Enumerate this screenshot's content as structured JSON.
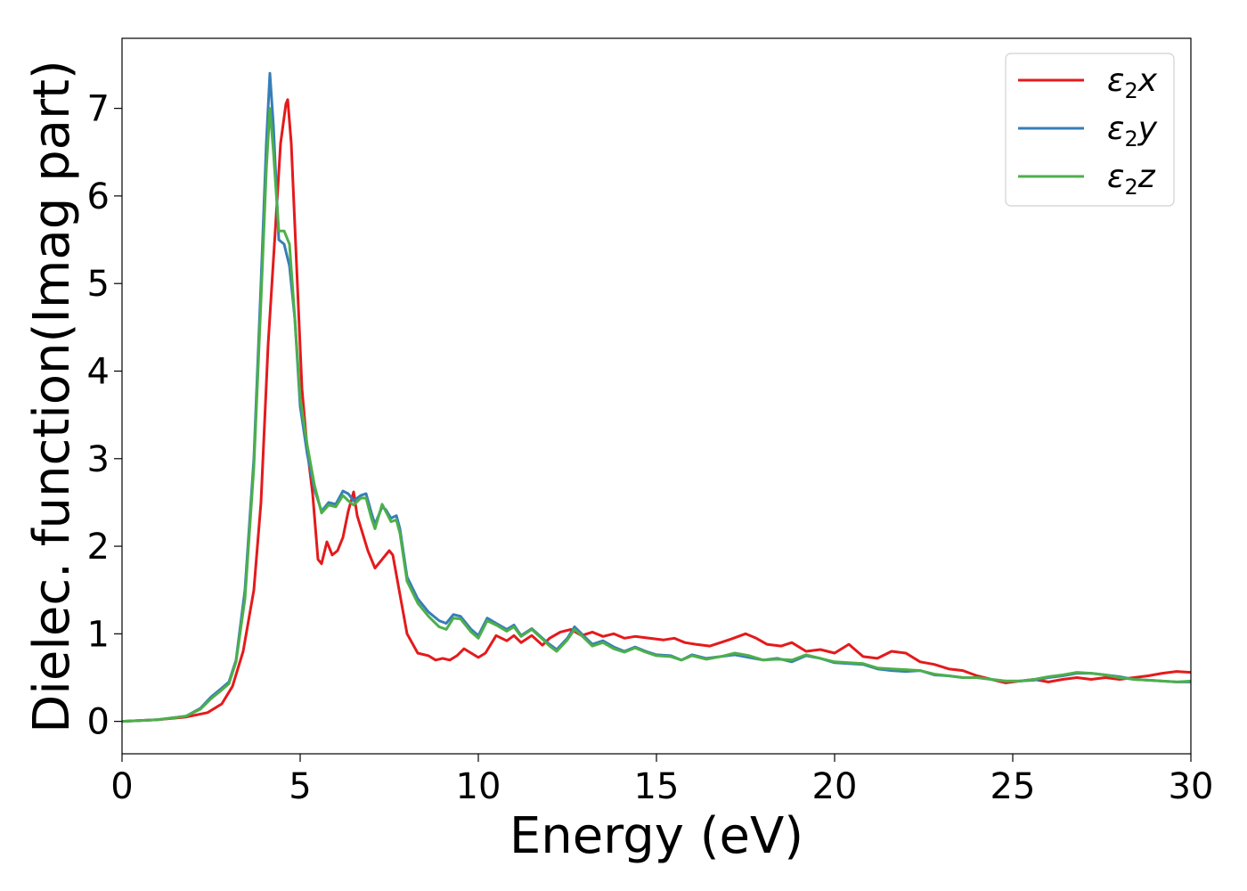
{
  "chart_data": {
    "type": "line",
    "title": "",
    "xlabel": "Energy (eV)",
    "ylabel": "Dielec. function(Imag part)",
    "xlim": [
      0,
      30
    ],
    "ylim": [
      -0.37,
      7.8
    ],
    "xticks": [
      0,
      5,
      10,
      15,
      20,
      25,
      30
    ],
    "yticks": [
      0,
      1,
      2,
      3,
      4,
      5,
      6,
      7
    ],
    "grid": false,
    "legend_position": "top-right",
    "series": [
      {
        "name": "ε₂x",
        "legend_base": "ε",
        "legend_sub": "2",
        "legend_suffix": "x",
        "color": "#e41a1c",
        "points": [
          [
            0,
            0
          ],
          [
            1,
            0.02
          ],
          [
            1.8,
            0.05
          ],
          [
            2.4,
            0.1
          ],
          [
            2.8,
            0.2
          ],
          [
            3.1,
            0.4
          ],
          [
            3.4,
            0.8
          ],
          [
            3.7,
            1.5
          ],
          [
            3.9,
            2.5
          ],
          [
            4.1,
            4.3
          ],
          [
            4.3,
            5.6
          ],
          [
            4.45,
            6.6
          ],
          [
            4.6,
            7.05
          ],
          [
            4.65,
            7.1
          ],
          [
            4.75,
            6.6
          ],
          [
            4.9,
            5.2
          ],
          [
            5.05,
            3.8
          ],
          [
            5.2,
            3.1
          ],
          [
            5.35,
            2.6
          ],
          [
            5.5,
            1.85
          ],
          [
            5.6,
            1.8
          ],
          [
            5.75,
            2.05
          ],
          [
            5.9,
            1.9
          ],
          [
            6.05,
            1.95
          ],
          [
            6.2,
            2.1
          ],
          [
            6.35,
            2.4
          ],
          [
            6.5,
            2.62
          ],
          [
            6.6,
            2.35
          ],
          [
            6.75,
            2.15
          ],
          [
            6.9,
            1.95
          ],
          [
            7.1,
            1.75
          ],
          [
            7.3,
            1.85
          ],
          [
            7.5,
            1.95
          ],
          [
            7.6,
            1.9
          ],
          [
            7.8,
            1.45
          ],
          [
            8.0,
            1.0
          ],
          [
            8.3,
            0.78
          ],
          [
            8.6,
            0.75
          ],
          [
            8.8,
            0.7
          ],
          [
            9.0,
            0.72
          ],
          [
            9.2,
            0.7
          ],
          [
            9.4,
            0.75
          ],
          [
            9.6,
            0.83
          ],
          [
            9.8,
            0.78
          ],
          [
            10.0,
            0.73
          ],
          [
            10.2,
            0.78
          ],
          [
            10.5,
            0.98
          ],
          [
            10.8,
            0.92
          ],
          [
            11.0,
            0.98
          ],
          [
            11.2,
            0.9
          ],
          [
            11.5,
            0.98
          ],
          [
            11.8,
            0.87
          ],
          [
            12.0,
            0.95
          ],
          [
            12.3,
            1.02
          ],
          [
            12.6,
            1.05
          ],
          [
            12.9,
            0.98
          ],
          [
            13.2,
            1.02
          ],
          [
            13.5,
            0.97
          ],
          [
            13.8,
            1.0
          ],
          [
            14.1,
            0.95
          ],
          [
            14.4,
            0.97
          ],
          [
            14.8,
            0.95
          ],
          [
            15.2,
            0.93
          ],
          [
            15.5,
            0.95
          ],
          [
            15.8,
            0.9
          ],
          [
            16.1,
            0.88
          ],
          [
            16.5,
            0.86
          ],
          [
            16.8,
            0.9
          ],
          [
            17.1,
            0.94
          ],
          [
            17.5,
            1.0
          ],
          [
            17.8,
            0.95
          ],
          [
            18.1,
            0.88
          ],
          [
            18.5,
            0.86
          ],
          [
            18.8,
            0.9
          ],
          [
            19.2,
            0.8
          ],
          [
            19.6,
            0.82
          ],
          [
            20.0,
            0.78
          ],
          [
            20.4,
            0.88
          ],
          [
            20.8,
            0.74
          ],
          [
            21.2,
            0.72
          ],
          [
            21.6,
            0.8
          ],
          [
            22.0,
            0.78
          ],
          [
            22.4,
            0.68
          ],
          [
            22.8,
            0.65
          ],
          [
            23.2,
            0.6
          ],
          [
            23.6,
            0.58
          ],
          [
            24.0,
            0.52
          ],
          [
            24.4,
            0.48
          ],
          [
            24.8,
            0.44
          ],
          [
            25.2,
            0.46
          ],
          [
            25.6,
            0.48
          ],
          [
            26.0,
            0.45
          ],
          [
            26.4,
            0.48
          ],
          [
            26.8,
            0.5
          ],
          [
            27.2,
            0.48
          ],
          [
            27.6,
            0.5
          ],
          [
            28.0,
            0.48
          ],
          [
            28.4,
            0.5
          ],
          [
            28.8,
            0.52
          ],
          [
            29.2,
            0.55
          ],
          [
            29.6,
            0.57
          ],
          [
            30.0,
            0.56
          ]
        ]
      },
      {
        "name": "ε₂y",
        "legend_base": "ε",
        "legend_sub": "2",
        "legend_suffix": "y",
        "color": "#377eb8",
        "points": [
          [
            0,
            0
          ],
          [
            1,
            0.02
          ],
          [
            1.8,
            0.06
          ],
          [
            2.2,
            0.15
          ],
          [
            2.5,
            0.28
          ],
          [
            2.8,
            0.38
          ],
          [
            3.0,
            0.45
          ],
          [
            3.2,
            0.7
          ],
          [
            3.45,
            1.5
          ],
          [
            3.7,
            3.0
          ],
          [
            3.9,
            5.0
          ],
          [
            4.05,
            6.6
          ],
          [
            4.15,
            7.4
          ],
          [
            4.25,
            6.8
          ],
          [
            4.4,
            5.5
          ],
          [
            4.55,
            5.45
          ],
          [
            4.7,
            5.2
          ],
          [
            4.85,
            4.6
          ],
          [
            5.0,
            3.6
          ],
          [
            5.2,
            3.05
          ],
          [
            5.4,
            2.65
          ],
          [
            5.6,
            2.4
          ],
          [
            5.8,
            2.5
          ],
          [
            6.0,
            2.48
          ],
          [
            6.2,
            2.63
          ],
          [
            6.35,
            2.6
          ],
          [
            6.5,
            2.52
          ],
          [
            6.7,
            2.58
          ],
          [
            6.85,
            2.6
          ],
          [
            7.0,
            2.38
          ],
          [
            7.1,
            2.25
          ],
          [
            7.3,
            2.45
          ],
          [
            7.4,
            2.42
          ],
          [
            7.55,
            2.32
          ],
          [
            7.7,
            2.35
          ],
          [
            7.8,
            2.2
          ],
          [
            8.0,
            1.65
          ],
          [
            8.3,
            1.4
          ],
          [
            8.6,
            1.25
          ],
          [
            8.9,
            1.15
          ],
          [
            9.1,
            1.12
          ],
          [
            9.3,
            1.22
          ],
          [
            9.5,
            1.2
          ],
          [
            9.8,
            1.05
          ],
          [
            10.0,
            0.98
          ],
          [
            10.25,
            1.18
          ],
          [
            10.5,
            1.12
          ],
          [
            10.8,
            1.05
          ],
          [
            11.0,
            1.1
          ],
          [
            11.2,
            0.98
          ],
          [
            11.5,
            1.06
          ],
          [
            11.8,
            0.95
          ],
          [
            12.0,
            0.88
          ],
          [
            12.2,
            0.82
          ],
          [
            12.5,
            0.95
          ],
          [
            12.7,
            1.08
          ],
          [
            12.9,
            1.0
          ],
          [
            13.2,
            0.88
          ],
          [
            13.5,
            0.92
          ],
          [
            13.8,
            0.85
          ],
          [
            14.1,
            0.8
          ],
          [
            14.4,
            0.85
          ],
          [
            14.7,
            0.8
          ],
          [
            15.0,
            0.76
          ],
          [
            15.4,
            0.75
          ],
          [
            15.7,
            0.7
          ],
          [
            16.0,
            0.76
          ],
          [
            16.4,
            0.72
          ],
          [
            16.8,
            0.74
          ],
          [
            17.2,
            0.76
          ],
          [
            17.6,
            0.73
          ],
          [
            18.0,
            0.7
          ],
          [
            18.4,
            0.72
          ],
          [
            18.8,
            0.68
          ],
          [
            19.2,
            0.75
          ],
          [
            19.6,
            0.72
          ],
          [
            20.0,
            0.67
          ],
          [
            20.4,
            0.66
          ],
          [
            20.8,
            0.65
          ],
          [
            21.2,
            0.6
          ],
          [
            21.6,
            0.58
          ],
          [
            22.0,
            0.57
          ],
          [
            22.4,
            0.58
          ],
          [
            22.8,
            0.53
          ],
          [
            23.2,
            0.52
          ],
          [
            23.6,
            0.5
          ],
          [
            24.0,
            0.5
          ],
          [
            24.4,
            0.48
          ],
          [
            24.8,
            0.46
          ],
          [
            25.2,
            0.46
          ],
          [
            25.6,
            0.47
          ],
          [
            26.0,
            0.5
          ],
          [
            26.4,
            0.52
          ],
          [
            26.8,
            0.55
          ],
          [
            27.2,
            0.55
          ],
          [
            27.6,
            0.53
          ],
          [
            28.0,
            0.51
          ],
          [
            28.4,
            0.48
          ],
          [
            28.8,
            0.47
          ],
          [
            29.2,
            0.46
          ],
          [
            29.6,
            0.45
          ],
          [
            30.0,
            0.45
          ]
        ]
      },
      {
        "name": "ε₂z",
        "legend_base": "ε",
        "legend_sub": "2",
        "legend_suffix": "z",
        "color": "#4daf4a",
        "points": [
          [
            0,
            0
          ],
          [
            1,
            0.02
          ],
          [
            1.8,
            0.06
          ],
          [
            2.2,
            0.14
          ],
          [
            2.5,
            0.26
          ],
          [
            2.8,
            0.36
          ],
          [
            3.0,
            0.43
          ],
          [
            3.2,
            0.68
          ],
          [
            3.45,
            1.4
          ],
          [
            3.7,
            2.9
          ],
          [
            3.9,
            4.8
          ],
          [
            4.05,
            6.3
          ],
          [
            4.15,
            7.0
          ],
          [
            4.25,
            6.5
          ],
          [
            4.4,
            5.6
          ],
          [
            4.55,
            5.6
          ],
          [
            4.7,
            5.45
          ],
          [
            4.85,
            4.6
          ],
          [
            5.0,
            3.7
          ],
          [
            5.2,
            3.15
          ],
          [
            5.4,
            2.7
          ],
          [
            5.6,
            2.38
          ],
          [
            5.8,
            2.47
          ],
          [
            6.0,
            2.45
          ],
          [
            6.2,
            2.58
          ],
          [
            6.35,
            2.52
          ],
          [
            6.5,
            2.47
          ],
          [
            6.7,
            2.55
          ],
          [
            6.85,
            2.55
          ],
          [
            7.0,
            2.32
          ],
          [
            7.1,
            2.2
          ],
          [
            7.3,
            2.48
          ],
          [
            7.4,
            2.4
          ],
          [
            7.55,
            2.28
          ],
          [
            7.7,
            2.3
          ],
          [
            7.8,
            2.15
          ],
          [
            8.0,
            1.6
          ],
          [
            8.3,
            1.35
          ],
          [
            8.6,
            1.2
          ],
          [
            8.9,
            1.08
          ],
          [
            9.1,
            1.05
          ],
          [
            9.3,
            1.18
          ],
          [
            9.5,
            1.17
          ],
          [
            9.8,
            1.02
          ],
          [
            10.0,
            0.95
          ],
          [
            10.25,
            1.15
          ],
          [
            10.5,
            1.1
          ],
          [
            10.8,
            1.03
          ],
          [
            11.0,
            1.08
          ],
          [
            11.2,
            0.97
          ],
          [
            11.5,
            1.05
          ],
          [
            11.8,
            0.94
          ],
          [
            12.0,
            0.86
          ],
          [
            12.2,
            0.8
          ],
          [
            12.5,
            0.93
          ],
          [
            12.7,
            1.05
          ],
          [
            12.9,
            0.98
          ],
          [
            13.2,
            0.86
          ],
          [
            13.5,
            0.9
          ],
          [
            13.8,
            0.83
          ],
          [
            14.1,
            0.79
          ],
          [
            14.4,
            0.84
          ],
          [
            14.7,
            0.79
          ],
          [
            15.0,
            0.75
          ],
          [
            15.4,
            0.74
          ],
          [
            15.7,
            0.7
          ],
          [
            16.0,
            0.75
          ],
          [
            16.4,
            0.71
          ],
          [
            16.8,
            0.74
          ],
          [
            17.2,
            0.78
          ],
          [
            17.6,
            0.75
          ],
          [
            18.0,
            0.7
          ],
          [
            18.4,
            0.71
          ],
          [
            18.8,
            0.7
          ],
          [
            19.2,
            0.76
          ],
          [
            19.6,
            0.72
          ],
          [
            20.0,
            0.68
          ],
          [
            20.4,
            0.67
          ],
          [
            20.8,
            0.66
          ],
          [
            21.2,
            0.61
          ],
          [
            21.6,
            0.6
          ],
          [
            22.0,
            0.59
          ],
          [
            22.4,
            0.58
          ],
          [
            22.8,
            0.54
          ],
          [
            23.2,
            0.52
          ],
          [
            23.6,
            0.5
          ],
          [
            24.0,
            0.5
          ],
          [
            24.4,
            0.48
          ],
          [
            24.8,
            0.46
          ],
          [
            25.2,
            0.46
          ],
          [
            25.6,
            0.48
          ],
          [
            26.0,
            0.51
          ],
          [
            26.4,
            0.53
          ],
          [
            26.8,
            0.56
          ],
          [
            27.2,
            0.55
          ],
          [
            27.6,
            0.53
          ],
          [
            28.0,
            0.5
          ],
          [
            28.4,
            0.48
          ],
          [
            28.8,
            0.47
          ],
          [
            29.2,
            0.46
          ],
          [
            29.6,
            0.45
          ],
          [
            30.0,
            0.46
          ]
        ]
      }
    ]
  }
}
